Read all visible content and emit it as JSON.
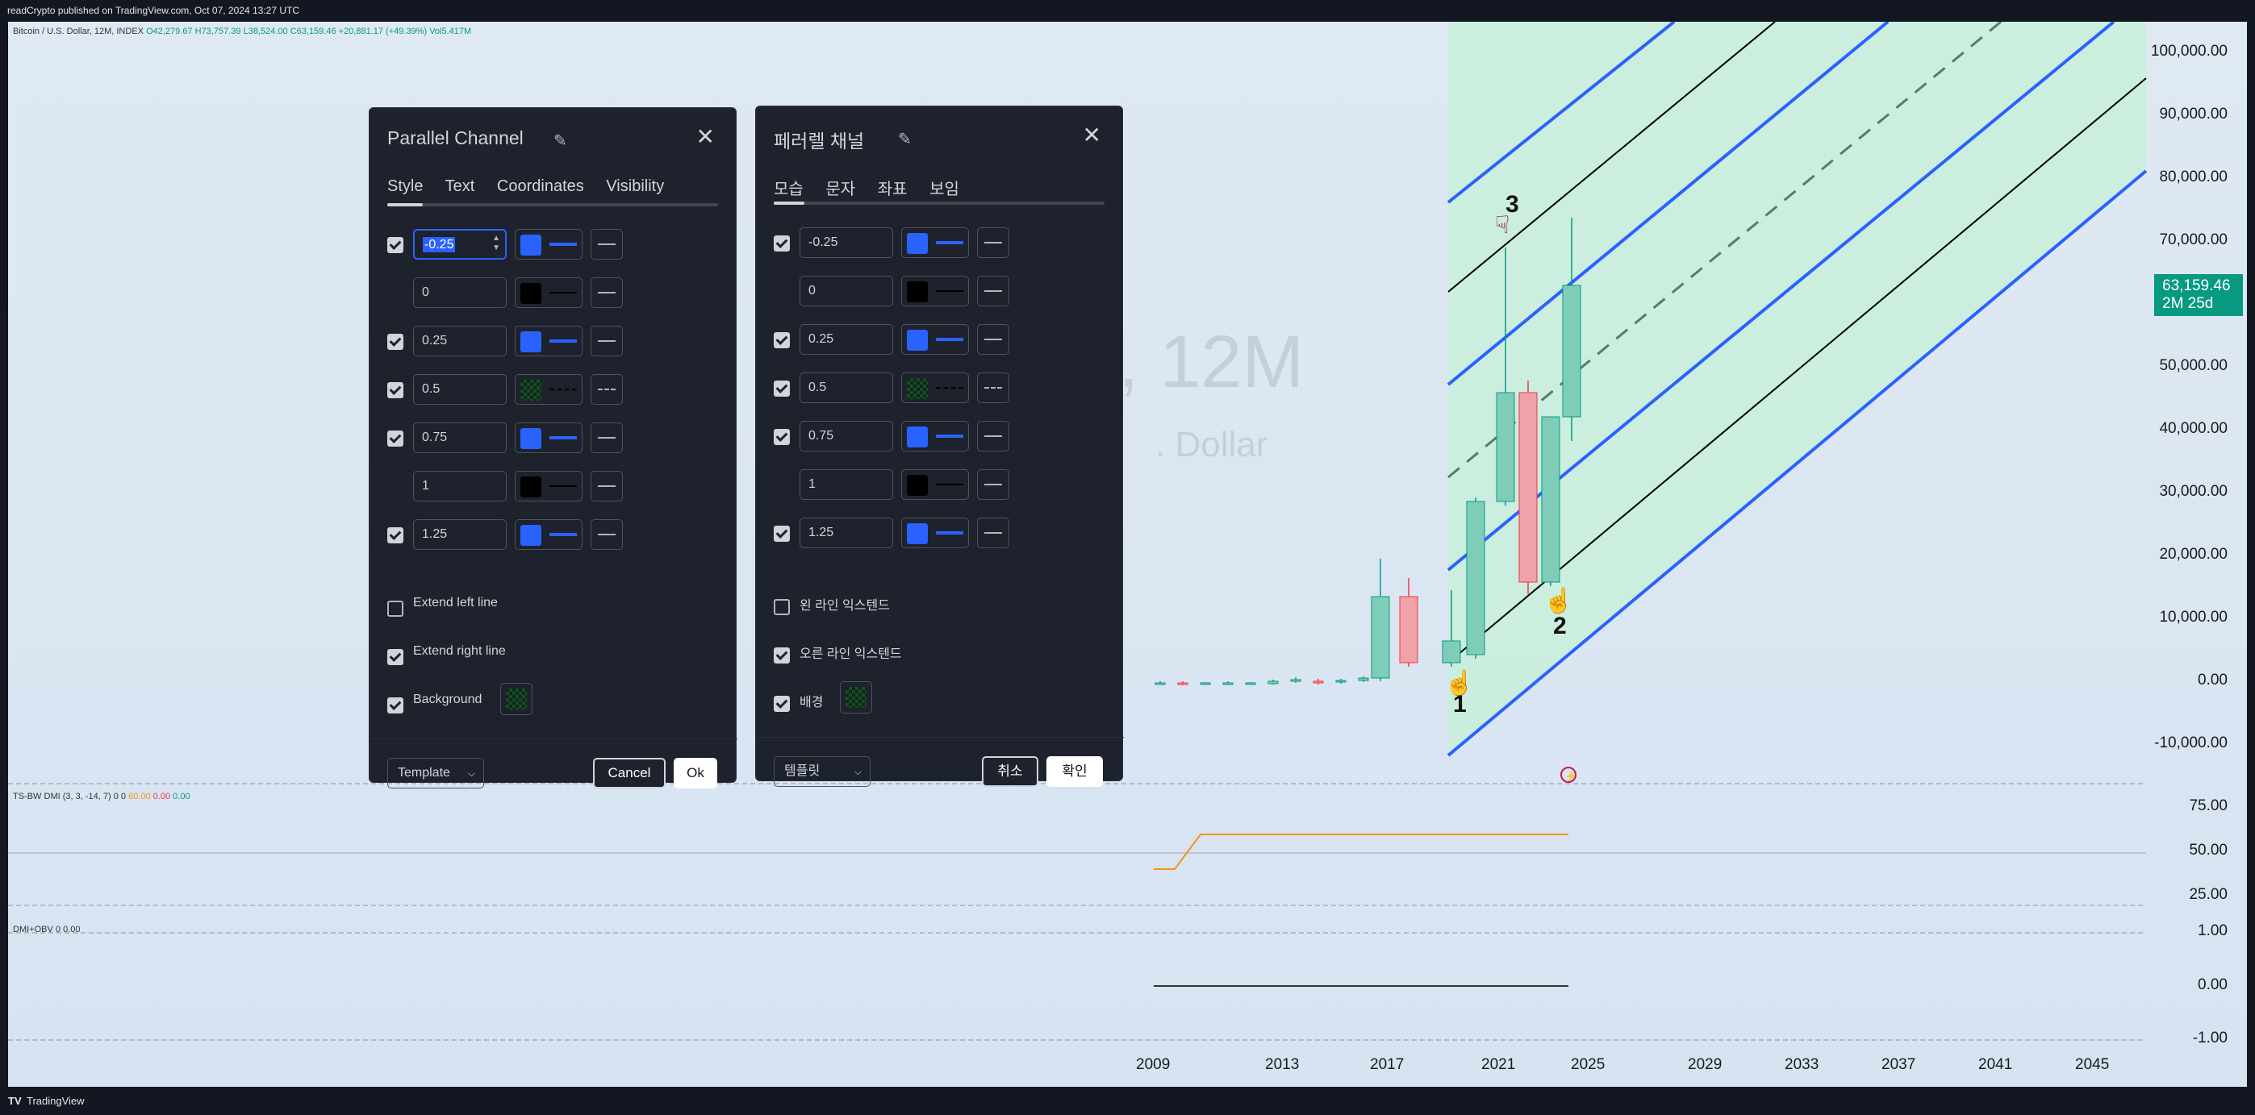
{
  "topbar": {
    "text": "readCrypto published on TradingView.com, Oct 07, 2024 13:27 UTC"
  },
  "legend": {
    "symbol": "Bitcoin / U.S. Dollar, 12M, INDEX",
    "open": "O42,279.67",
    "high": "H73,757.39",
    "low": "L38,524.00",
    "close": "C63,159.46",
    "change": "+20,881.17 (+49.39%)",
    "vol": "Vol5.417M"
  },
  "watermark": {
    "line1": ", 12M",
    "line2": ". Dollar"
  },
  "indicator1": {
    "name": "TS-BW DMI (3, 3, -14, 7)",
    "v1": "0",
    "v2": "0",
    "v3": "60.00",
    "v4": "0.00",
    "v5": "0.00"
  },
  "indicator2": {
    "name": "DMI+OBV",
    "v1": "0",
    "v2": "0.00"
  },
  "price_axis": [
    "100,000.00",
    "90,000.00",
    "80,000.00",
    "70,000.00",
    "50,000.00",
    "40,000.00",
    "30,000.00",
    "20,000.00",
    "10,000.00",
    "0.00",
    "-10,000.00"
  ],
  "price_tag": {
    "price": "63,159.46",
    "countdown": "2M 25d"
  },
  "pane1_axis": [
    "75.00",
    "50.00",
    "25.00"
  ],
  "pane2_axis": [
    "1.00",
    "0.00",
    "-1.00"
  ],
  "time_axis": [
    "2009",
    "2013",
    "2017",
    "2021",
    "2025",
    "2029",
    "2033",
    "2037",
    "2041",
    "2045"
  ],
  "annotations": [
    "1",
    "2",
    "3"
  ],
  "colors": {
    "up": "#089981",
    "down": "#f23645",
    "channel": "#2962ff",
    "background_fill": "#c8eedb"
  },
  "dialog_en": {
    "title": "Parallel Channel",
    "tabs": [
      "Style",
      "Text",
      "Coordinates",
      "Visibility"
    ],
    "levels": [
      {
        "checked": true,
        "value": "-0.25",
        "color": "blue",
        "line": "solid"
      },
      {
        "checked": false,
        "value": "0",
        "color": "black",
        "line": "solid"
      },
      {
        "checked": true,
        "value": "0.25",
        "color": "blue",
        "line": "solid"
      },
      {
        "checked": true,
        "value": "0.5",
        "color": "check",
        "line": "dashed"
      },
      {
        "checked": true,
        "value": "0.75",
        "color": "blue",
        "line": "solid"
      },
      {
        "checked": false,
        "value": "1",
        "color": "black",
        "line": "solid"
      },
      {
        "checked": true,
        "value": "1.25",
        "color": "blue",
        "line": "solid"
      }
    ],
    "extend_left": "Extend left line",
    "extend_right": "Extend right line",
    "background": "Background",
    "template": "Template",
    "cancel": "Cancel",
    "ok": "Ok"
  },
  "dialog_ko": {
    "title": "페러렐 채널",
    "tabs": [
      "모습",
      "문자",
      "좌표",
      "보임"
    ],
    "levels": [
      {
        "checked": true,
        "value": "-0.25",
        "color": "blue",
        "line": "solid"
      },
      {
        "checked": false,
        "value": "0",
        "color": "black",
        "line": "solid"
      },
      {
        "checked": true,
        "value": "0.25",
        "color": "blue",
        "line": "solid"
      },
      {
        "checked": true,
        "value": "0.5",
        "color": "check",
        "line": "dashed"
      },
      {
        "checked": true,
        "value": "0.75",
        "color": "blue",
        "line": "solid"
      },
      {
        "checked": false,
        "value": "1",
        "color": "black",
        "line": "solid"
      },
      {
        "checked": true,
        "value": "1.25",
        "color": "blue",
        "line": "solid"
      }
    ],
    "extend_left": "왼 라인 익스텐드",
    "extend_right": "오른 라인 익스텐드",
    "background": "배경",
    "template": "템플릿",
    "cancel": "취소",
    "ok": "확인"
  },
  "footer": {
    "brand": "TradingView"
  }
}
